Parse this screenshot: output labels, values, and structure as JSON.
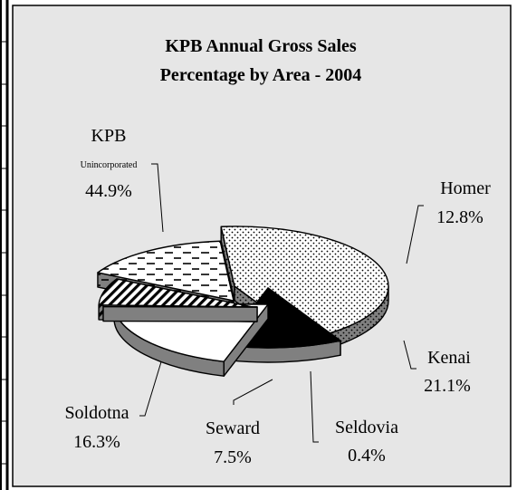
{
  "chart_data": {
    "type": "pie",
    "title_lines": [
      "KPB Annual Gross Sales",
      "Percentage by Area - 2004"
    ],
    "slices": [
      {
        "key": "kpb",
        "name_lines": [
          "KPB",
          "Unincorporated"
        ],
        "value": 44.9,
        "value_label": "44.9%",
        "fill": "dots"
      },
      {
        "key": "homer",
        "name_lines": [
          "Homer"
        ],
        "value": 12.8,
        "value_label": "12.8%",
        "fill": "#000000"
      },
      {
        "key": "kenai",
        "name_lines": [
          "Kenai"
        ],
        "value": 21.1,
        "value_label": "21.1%",
        "fill": "#ffffff"
      },
      {
        "key": "seldovia",
        "name_lines": [
          "Seldovia"
        ],
        "value": 0.4,
        "value_label": "0.4%",
        "fill": "#ffffff"
      },
      {
        "key": "seward",
        "name_lines": [
          "Seward"
        ],
        "value": 7.5,
        "value_label": "7.5%",
        "fill": "diagonal"
      },
      {
        "key": "soldotna",
        "name_lines": [
          "Soldotna"
        ],
        "value": 16.3,
        "value_label": "16.3%",
        "fill": "dashes"
      }
    ],
    "style": "3d-exploded-pie",
    "colors": {
      "plot_background": "#e6e6e6",
      "side_shade": "#808080"
    }
  }
}
